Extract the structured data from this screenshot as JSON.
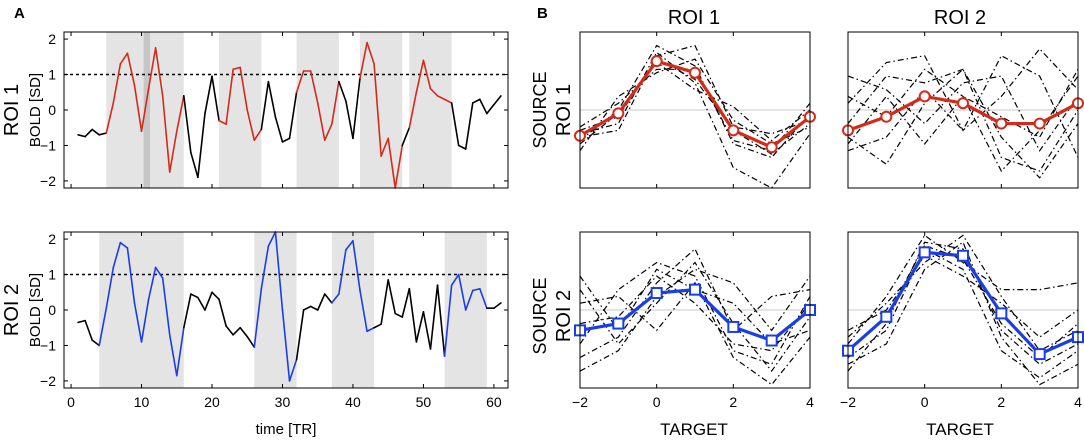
{
  "figure": {
    "panel_a_label": "A",
    "panel_b_label": "B",
    "col_titles": [
      "ROI 1",
      "ROI 2"
    ],
    "row_titles": [
      "ROI 1",
      "ROI 2"
    ],
    "a_ylabel": "BOLD [SD]",
    "a_xlabel": "time [TR]",
    "b_ylabel": "SOURCE",
    "b_xlabel": "TARGET"
  },
  "colors": {
    "roi1": "#d42a1a",
    "roi2": "#1a3ee6",
    "block_shade": "#e4e4e4",
    "event_shade": "#c6c6c6",
    "grid": "#c8c8c8",
    "axis": "#000000"
  },
  "chart_data": [
    {
      "id": "A-ROI1",
      "type": "line",
      "title": "ROI 1",
      "xlabel": "time [TR]",
      "ylabel": "BOLD [SD]",
      "xlim": [
        -1,
        62
      ],
      "ylim": [
        -2.2,
        2.2
      ],
      "xticks": [
        0,
        10,
        20,
        30,
        40,
        50,
        60
      ],
      "yticks": [
        -2,
        -1,
        0,
        1,
        2
      ],
      "threshold": 1,
      "blocks": [
        [
          5,
          16
        ],
        [
          21,
          27
        ],
        [
          32,
          38
        ],
        [
          41,
          47
        ],
        [
          48,
          54
        ]
      ],
      "events": [
        [
          10.3,
          11.2
        ]
      ],
      "color_key": "roi1",
      "x": [
        1,
        2,
        3,
        4,
        5,
        6,
        7,
        8,
        9,
        10,
        11,
        12,
        13,
        14,
        15,
        16,
        17,
        18,
        19,
        20,
        21,
        22,
        23,
        24,
        25,
        26,
        27,
        28,
        29,
        30,
        31,
        32,
        33,
        34,
        35,
        36,
        37,
        38,
        39,
        40,
        41,
        42,
        43,
        44,
        45,
        46,
        47,
        48,
        49,
        50,
        51,
        52,
        53,
        54,
        55,
        56,
        57,
        58,
        59,
        60,
        61
      ],
      "y": [
        -0.7,
        -0.75,
        -0.55,
        -0.7,
        -0.65,
        0.2,
        1.3,
        1.6,
        0.7,
        -0.6,
        0.6,
        1.75,
        0.4,
        -1.75,
        -0.6,
        0.4,
        -1.2,
        -1.9,
        -0.1,
        0.95,
        -0.3,
        -0.4,
        1.15,
        1.2,
        0.0,
        -0.85,
        -0.55,
        0.8,
        -0.2,
        -0.9,
        -0.8,
        0.5,
        1.1,
        1.1,
        0.2,
        -0.85,
        -0.4,
        0.8,
        0.25,
        -0.8,
        0.9,
        1.9,
        1.3,
        -1.3,
        -0.8,
        -2.2,
        -1.0,
        -0.5,
        0.5,
        1.4,
        0.6,
        0.4,
        0.3,
        0.2,
        -1.0,
        -1.1,
        0.2,
        0.3,
        -0.1,
        0.15,
        0.4
      ]
    },
    {
      "id": "A-ROI2",
      "type": "line",
      "title": "ROI 2",
      "xlabel": "time [TR]",
      "ylabel": "BOLD [SD]",
      "xlim": [
        -1,
        62
      ],
      "ylim": [
        -2.2,
        2.2
      ],
      "xticks": [
        0,
        10,
        20,
        30,
        40,
        50,
        60
      ],
      "yticks": [
        -2,
        -1,
        0,
        1,
        2
      ],
      "threshold": 1,
      "blocks": [
        [
          4,
          16
        ],
        [
          26,
          32
        ],
        [
          37,
          43
        ],
        [
          53,
          59
        ]
      ],
      "events": [],
      "color_key": "roi2",
      "x": [
        1,
        2,
        3,
        4,
        5,
        6,
        7,
        8,
        9,
        10,
        11,
        12,
        13,
        14,
        15,
        16,
        17,
        18,
        19,
        20,
        21,
        22,
        23,
        24,
        25,
        26,
        27,
        28,
        29,
        30,
        31,
        32,
        33,
        34,
        35,
        36,
        37,
        38,
        39,
        40,
        41,
        42,
        43,
        44,
        45,
        46,
        47,
        48,
        49,
        50,
        51,
        52,
        53,
        54,
        55,
        56,
        57,
        58,
        59,
        60,
        61
      ],
      "y": [
        -0.35,
        -0.3,
        -0.85,
        -1.0,
        0.05,
        1.2,
        1.9,
        1.75,
        0.2,
        -0.9,
        0.3,
        1.2,
        0.9,
        -0.7,
        -1.85,
        -0.5,
        0.45,
        0.35,
        0.0,
        0.5,
        0.3,
        -0.45,
        -0.7,
        -0.5,
        -0.75,
        -1.05,
        0.6,
        1.8,
        2.2,
        0.0,
        -2.0,
        -1.4,
        0.0,
        0.1,
        0.0,
        0.45,
        0.2,
        0.45,
        1.7,
        1.95,
        0.55,
        -0.6,
        -0.5,
        -0.4,
        0.85,
        -0.1,
        -0.2,
        0.6,
        -0.9,
        -0.05,
        -1.1,
        0.7,
        -1.3,
        0.7,
        1.0,
        0.0,
        0.55,
        0.6,
        0.05,
        0.05,
        0.2
      ]
    },
    {
      "id": "B-ROI1-ROI1",
      "type": "line",
      "source": "ROI 1",
      "target": "ROI 1",
      "xlabel": "TARGET",
      "ylabel": "SOURCE",
      "xlim": [
        -2,
        4
      ],
      "ylim": [
        -1.15,
        1.15
      ],
      "xticks": [
        -2,
        0,
        2,
        4
      ],
      "marker": "circle",
      "color_key": "roi1",
      "x": [
        -2,
        -1,
        0,
        1,
        2,
        3,
        4
      ],
      "mean": [
        -0.38,
        -0.05,
        0.72,
        0.55,
        -0.3,
        -0.55,
        -0.1
      ],
      "individual": [
        [
          -0.3,
          -0.1,
          0.75,
          0.45,
          -0.3,
          -0.65,
          -0.2
        ],
        [
          -0.45,
          0.0,
          0.95,
          0.65,
          -0.5,
          -0.7,
          -0.05
        ],
        [
          -0.6,
          0.2,
          0.55,
          0.75,
          -0.15,
          -0.5,
          -0.25
        ],
        [
          -0.35,
          -0.2,
          0.85,
          0.4,
          -0.85,
          -1.15,
          -0.35
        ],
        [
          -0.5,
          -0.05,
          0.7,
          0.3,
          0.05,
          -0.45,
          0.0
        ],
        [
          -0.25,
          0.1,
          0.6,
          0.6,
          -0.45,
          -0.6,
          0.1
        ],
        [
          -0.4,
          -0.3,
          0.8,
          0.95,
          -0.25,
          -0.35,
          -0.15
        ]
      ]
    },
    {
      "id": "B-ROI1-ROI2",
      "type": "line",
      "source": "ROI 1",
      "target": "ROI 2",
      "xlabel": "TARGET",
      "ylabel": "SOURCE",
      "xlim": [
        -2,
        4
      ],
      "ylim": [
        -1.15,
        1.15
      ],
      "xticks": [
        -2,
        0,
        2,
        4
      ],
      "marker": "circle",
      "color_key": "roi1",
      "x": [
        -2,
        -1,
        0,
        1,
        2,
        3,
        4
      ],
      "mean": [
        -0.3,
        -0.1,
        0.2,
        0.1,
        -0.2,
        -0.2,
        0.1
      ],
      "individual": [
        [
          -0.2,
          0.5,
          0.4,
          0.6,
          -0.4,
          -1.0,
          -0.2
        ],
        [
          0.2,
          -0.1,
          0.6,
          0.2,
          -0.9,
          -0.3,
          0.5
        ],
        [
          -0.6,
          -0.4,
          0.3,
          -0.3,
          0.8,
          0.5,
          -0.7
        ],
        [
          0.5,
          0.3,
          -0.2,
          0.4,
          0.5,
          -0.6,
          0.2
        ],
        [
          -0.4,
          -0.8,
          0.1,
          0.6,
          -0.7,
          -0.9,
          0.0
        ],
        [
          0.1,
          0.7,
          0.8,
          -0.3,
          0.2,
          0.9,
          0.3
        ],
        [
          -0.5,
          0.2,
          -0.5,
          0.2,
          -0.1,
          -0.4,
          0.6
        ]
      ]
    },
    {
      "id": "B-ROI2-ROI1",
      "type": "line",
      "source": "ROI 2",
      "target": "ROI 1",
      "xlabel": "TARGET",
      "ylabel": "SOURCE",
      "xlim": [
        -2,
        4
      ],
      "ylim": [
        -1.15,
        1.15
      ],
      "xticks": [
        -2,
        0,
        2,
        4
      ],
      "marker": "square",
      "color_key": "roi2",
      "x": [
        -2,
        -1,
        0,
        1,
        2,
        3,
        4
      ],
      "mean": [
        -0.3,
        -0.2,
        0.25,
        0.3,
        -0.25,
        -0.45,
        0.0
      ],
      "individual": [
        [
          -0.5,
          0.3,
          0.7,
          0.5,
          -0.6,
          -0.8,
          0.2
        ],
        [
          0.5,
          -0.3,
          0.6,
          0.3,
          0.1,
          -0.5,
          -0.3
        ],
        [
          -0.7,
          -0.4,
          0.4,
          0.9,
          -0.3,
          0.2,
          0.3
        ],
        [
          0.1,
          0.2,
          -0.3,
          0.4,
          -0.7,
          -1.1,
          -0.4
        ],
        [
          -0.9,
          -0.6,
          0.2,
          0.6,
          0.4,
          -0.3,
          0.5
        ],
        [
          -0.2,
          -0.1,
          0.5,
          0.1,
          -0.5,
          -0.6,
          0.1
        ],
        [
          0.3,
          -0.5,
          0.1,
          0.7,
          -0.2,
          -0.9,
          -0.1
        ]
      ]
    },
    {
      "id": "B-ROI2-ROI2",
      "type": "line",
      "source": "ROI 2",
      "target": "ROI 2",
      "xlabel": "TARGET",
      "ylabel": "SOURCE",
      "xlim": [
        -2,
        4
      ],
      "ylim": [
        -1.15,
        1.15
      ],
      "xticks": [
        -2,
        0,
        2,
        4
      ],
      "marker": "square",
      "color_key": "roi2",
      "x": [
        -2,
        -1,
        0,
        1,
        2,
        3,
        4
      ],
      "mean": [
        -0.6,
        -0.1,
        0.85,
        0.8,
        -0.05,
        -0.65,
        -0.4
      ],
      "individual": [
        [
          -0.9,
          -0.2,
          1.0,
          0.9,
          -0.3,
          -0.8,
          -0.5
        ],
        [
          -0.4,
          0.1,
          0.7,
          1.1,
          0.2,
          -0.6,
          -0.3
        ],
        [
          -0.7,
          -0.3,
          0.9,
          0.6,
          -0.6,
          -1.0,
          -0.6
        ],
        [
          -0.5,
          0.2,
          1.1,
          0.7,
          0.3,
          0.3,
          0.4
        ],
        [
          -0.8,
          -0.5,
          0.6,
          1.0,
          -0.4,
          -1.1,
          -0.8
        ],
        [
          -0.3,
          0.0,
          0.8,
          0.5,
          0.1,
          -0.4,
          0.0
        ],
        [
          -0.6,
          -0.1,
          0.95,
          0.75,
          -0.2,
          -0.7,
          -0.2
        ]
      ]
    }
  ]
}
